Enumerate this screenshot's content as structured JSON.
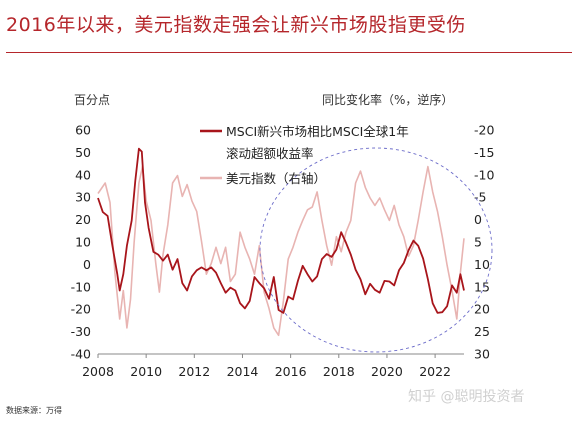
{
  "header": {
    "title": "2016年以来，美元指数走强会让新兴市场股指更受伤"
  },
  "footer": {
    "source": "数据来源：万得",
    "watermark": "知乎 @聪明投资者"
  },
  "chart_data": {
    "type": "line",
    "left_axis": {
      "label": "百分点",
      "ylim": [
        -40,
        60
      ],
      "ticks": [
        "60",
        "50",
        "40",
        "30",
        "20",
        "10",
        "0",
        "-10",
        "-20",
        "-30",
        "-40"
      ]
    },
    "right_axis": {
      "label": "同比变化率（%，逆序）",
      "ylim": [
        -20,
        30
      ],
      "inverted": true,
      "ticks": [
        "-20",
        "-15",
        "-10",
        "-5",
        "0",
        "5",
        "10",
        "15",
        "20",
        "25",
        "30"
      ]
    },
    "x_ticks": [
      "2008",
      "2010",
      "2012",
      "2014",
      "2016",
      "2018",
      "2020",
      "2022"
    ],
    "x_range": [
      2008,
      2023.2
    ],
    "series": [
      {
        "name": "MSCI新兴市场相比MSCI全球1年滚动超额收益率",
        "axis": "left",
        "color": "#a8151b",
        "points": [
          [
            2008.0,
            30
          ],
          [
            2008.2,
            23
          ],
          [
            2008.4,
            22
          ],
          [
            2008.6,
            8
          ],
          [
            2008.8,
            -4
          ],
          [
            2008.9,
            -12
          ],
          [
            2009.05,
            -4
          ],
          [
            2009.2,
            8
          ],
          [
            2009.4,
            20
          ],
          [
            2009.55,
            37
          ],
          [
            2009.7,
            52
          ],
          [
            2009.82,
            50
          ],
          [
            2009.95,
            28
          ],
          [
            2010.1,
            16
          ],
          [
            2010.3,
            6
          ],
          [
            2010.5,
            4
          ],
          [
            2010.7,
            2
          ],
          [
            2010.9,
            4
          ],
          [
            2011.1,
            -2
          ],
          [
            2011.3,
            2
          ],
          [
            2011.5,
            -8
          ],
          [
            2011.7,
            -12
          ],
          [
            2011.9,
            -5
          ],
          [
            2012.1,
            -3
          ],
          [
            2012.3,
            -1
          ],
          [
            2012.5,
            -3
          ],
          [
            2012.7,
            -1
          ],
          [
            2012.9,
            -4
          ],
          [
            2013.1,
            -8
          ],
          [
            2013.3,
            -13
          ],
          [
            2013.5,
            -10
          ],
          [
            2013.7,
            -12
          ],
          [
            2013.9,
            -17
          ],
          [
            2014.1,
            -20
          ],
          [
            2014.3,
            -16
          ],
          [
            2014.5,
            -6
          ],
          [
            2014.7,
            -8
          ],
          [
            2014.9,
            -11
          ],
          [
            2015.1,
            -15
          ],
          [
            2015.3,
            -6
          ],
          [
            2015.5,
            -20
          ],
          [
            2015.7,
            -22
          ],
          [
            2015.9,
            -14
          ],
          [
            2016.1,
            -16
          ],
          [
            2016.3,
            -7
          ],
          [
            2016.5,
            -1
          ],
          [
            2016.7,
            -4
          ],
          [
            2016.9,
            -8
          ],
          [
            2017.1,
            -5
          ],
          [
            2017.3,
            2
          ],
          [
            2017.5,
            5
          ],
          [
            2017.7,
            3
          ],
          [
            2017.9,
            7
          ],
          [
            2018.1,
            14
          ],
          [
            2018.3,
            10
          ],
          [
            2018.5,
            4
          ],
          [
            2018.7,
            -2
          ],
          [
            2018.9,
            -7
          ],
          [
            2019.1,
            -13
          ],
          [
            2019.3,
            -9
          ],
          [
            2019.5,
            -11
          ],
          [
            2019.7,
            -13
          ],
          [
            2019.9,
            -7
          ],
          [
            2020.1,
            -8
          ],
          [
            2020.3,
            -9
          ],
          [
            2020.5,
            -3
          ],
          [
            2020.7,
            1
          ],
          [
            2020.9,
            6
          ],
          [
            2021.1,
            11
          ],
          [
            2021.3,
            8
          ],
          [
            2021.5,
            3
          ],
          [
            2021.7,
            -7
          ],
          [
            2021.9,
            -17
          ],
          [
            2022.1,
            -22
          ],
          [
            2022.3,
            -21
          ],
          [
            2022.5,
            -19
          ],
          [
            2022.7,
            -9
          ],
          [
            2022.9,
            -13
          ],
          [
            2023.05,
            -4
          ],
          [
            2023.2,
            -12
          ]
        ]
      },
      {
        "name": "美元指数（右轴）",
        "axis": "right",
        "color": "#e8b4b2",
        "points": [
          [
            2008.0,
            -6
          ],
          [
            2008.3,
            -8
          ],
          [
            2008.5,
            -4
          ],
          [
            2008.7,
            12
          ],
          [
            2008.9,
            22
          ],
          [
            2009.05,
            16
          ],
          [
            2009.2,
            24
          ],
          [
            2009.35,
            18
          ],
          [
            2009.5,
            5
          ],
          [
            2009.7,
            -8
          ],
          [
            2009.85,
            -12
          ],
          [
            2010.0,
            -4
          ],
          [
            2010.2,
            0
          ],
          [
            2010.4,
            10
          ],
          [
            2010.55,
            16
          ],
          [
            2010.7,
            8
          ],
          [
            2010.9,
            1
          ],
          [
            2011.1,
            -8
          ],
          [
            2011.3,
            -10
          ],
          [
            2011.5,
            -5
          ],
          [
            2011.7,
            -8
          ],
          [
            2011.9,
            -4
          ],
          [
            2012.1,
            -2
          ],
          [
            2012.3,
            5
          ],
          [
            2012.5,
            12
          ],
          [
            2012.7,
            10
          ],
          [
            2012.9,
            6
          ],
          [
            2013.1,
            10
          ],
          [
            2013.3,
            6
          ],
          [
            2013.5,
            14
          ],
          [
            2013.7,
            12
          ],
          [
            2013.9,
            3
          ],
          [
            2014.1,
            6
          ],
          [
            2014.3,
            9
          ],
          [
            2014.5,
            12
          ],
          [
            2014.7,
            6
          ],
          [
            2014.9,
            16
          ],
          [
            2015.1,
            20
          ],
          [
            2015.3,
            24
          ],
          [
            2015.5,
            26
          ],
          [
            2015.7,
            18
          ],
          [
            2015.9,
            9
          ],
          [
            2016.1,
            6
          ],
          [
            2016.3,
            3
          ],
          [
            2016.5,
            0
          ],
          [
            2016.7,
            -2
          ],
          [
            2016.9,
            -3
          ],
          [
            2017.1,
            -6
          ],
          [
            2017.3,
            0
          ],
          [
            2017.5,
            6
          ],
          [
            2017.7,
            10
          ],
          [
            2017.9,
            4
          ],
          [
            2018.1,
            7
          ],
          [
            2018.3,
            3
          ],
          [
            2018.5,
            0
          ],
          [
            2018.7,
            -8
          ],
          [
            2018.9,
            -11
          ],
          [
            2019.1,
            -7
          ],
          [
            2019.3,
            -5
          ],
          [
            2019.5,
            -3
          ],
          [
            2019.7,
            -5
          ],
          [
            2019.9,
            -2
          ],
          [
            2020.1,
            0
          ],
          [
            2020.3,
            -3
          ],
          [
            2020.5,
            1
          ],
          [
            2020.7,
            4
          ],
          [
            2020.9,
            8
          ],
          [
            2021.1,
            6
          ],
          [
            2021.3,
            0
          ],
          [
            2021.5,
            -6
          ],
          [
            2021.7,
            -12
          ],
          [
            2021.9,
            -6
          ],
          [
            2022.1,
            -2
          ],
          [
            2022.3,
            4
          ],
          [
            2022.5,
            10
          ],
          [
            2022.7,
            16
          ],
          [
            2022.9,
            22
          ],
          [
            2023.05,
            12
          ],
          [
            2023.2,
            4
          ]
        ]
      }
    ],
    "annotation": "dashed-ellipse",
    "grid": false,
    "legend": "top-right"
  }
}
